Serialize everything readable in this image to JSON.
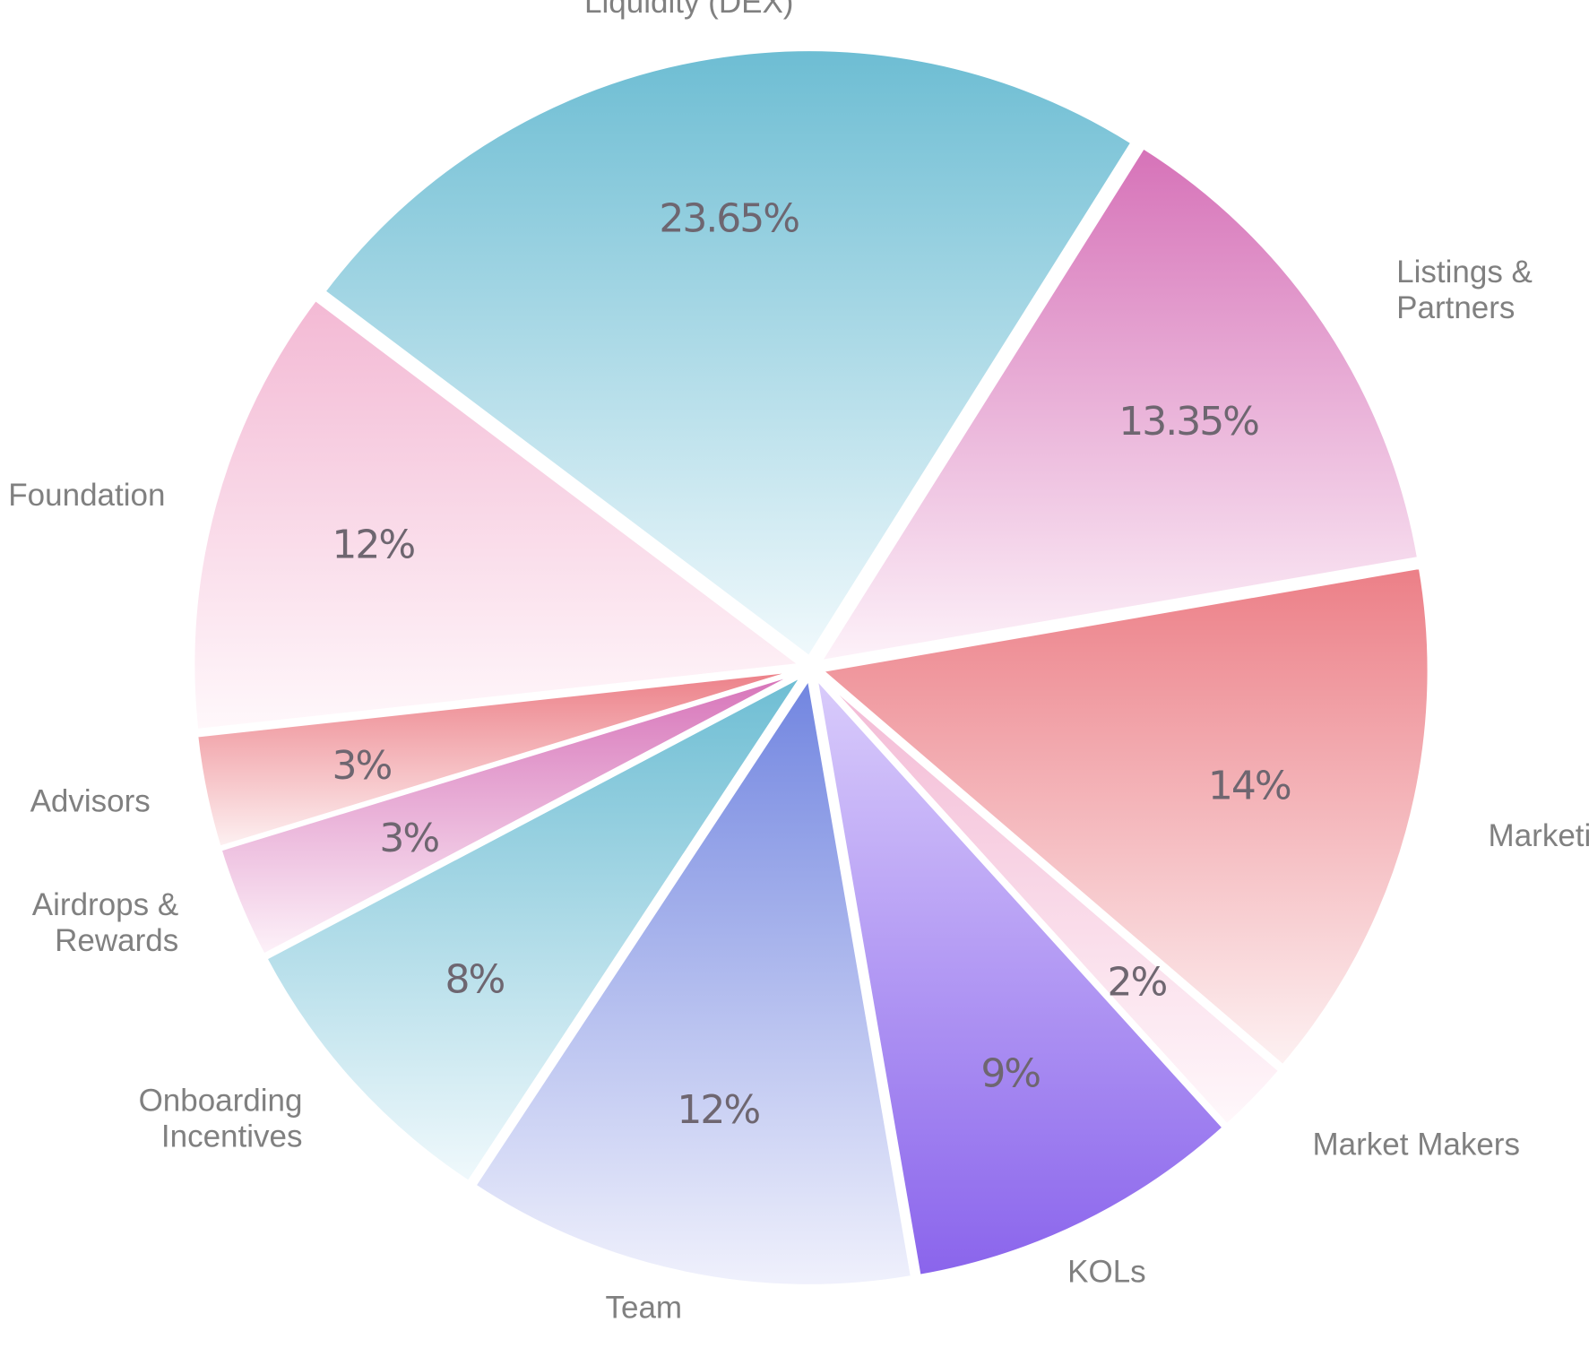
{
  "chart_data": {
    "type": "pie",
    "title": "",
    "slices": [
      {
        "label": [
          "Liquidity (DEX)"
        ],
        "value": 23.65,
        "value_label": "23.65%",
        "colors": [
          "#6dbdd3",
          "#f0f9fc"
        ]
      },
      {
        "label": [
          "Listings &",
          "Partners"
        ],
        "value": 13.35,
        "value_label": "13.35%",
        "colors": [
          "#d672b8",
          "#fdf2f9"
        ]
      },
      {
        "label": [
          "Marketing"
        ],
        "value": 14,
        "value_label": "14%",
        "colors": [
          "#ec7f87",
          "#fdf1f2"
        ]
      },
      {
        "label": [
          "Market Makers"
        ],
        "value": 2,
        "value_label": "2%",
        "colors": [
          "#f3b9d4",
          "#fff8fb"
        ]
      },
      {
        "label": [
          "KOLs"
        ],
        "value": 9,
        "value_label": "9%",
        "colors": [
          "#d9ccfb",
          "#8a64ec"
        ]
      },
      {
        "label": [
          "Team"
        ],
        "value": 12,
        "value_label": "12%",
        "colors": [
          "#7185e0",
          "#f0f1fc"
        ]
      },
      {
        "label": [
          "Onboarding",
          "Incentives"
        ],
        "value": 8,
        "value_label": "8%",
        "colors": [
          "#6dbdd3",
          "#f0f9fc"
        ]
      },
      {
        "label": [
          "Airdrops &",
          "Rewards"
        ],
        "value": 3,
        "value_label": "3%",
        "colors": [
          "#d672b8",
          "#fdf2f9"
        ]
      },
      {
        "label": [
          "Advisors"
        ],
        "value": 3,
        "value_label": "3%",
        "colors": [
          "#ec7f87",
          "#fdf1f2"
        ]
      },
      {
        "label": [
          "Foundation"
        ],
        "value": 12,
        "value_label": "12%",
        "colors": [
          "#f3b9d4",
          "#fff8fb"
        ]
      }
    ],
    "legend": "none"
  }
}
